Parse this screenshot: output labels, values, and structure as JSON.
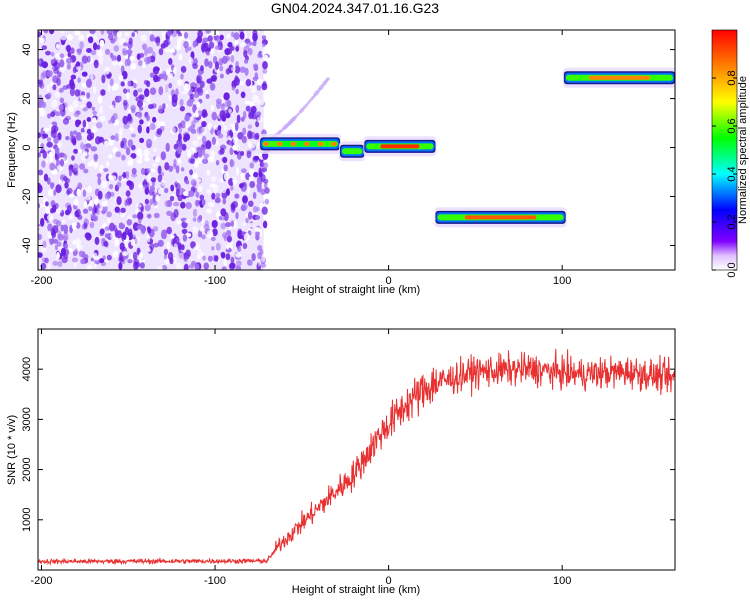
{
  "title": "GN04.2024.347.01.16.G23",
  "chart_data": [
    {
      "type": "heatmap",
      "name": "spectrogram",
      "xlabel": "Height of straight line (km)",
      "ylabel": "Frequency (Hz)",
      "xlim": [
        -202,
        165
      ],
      "ylim": [
        -50,
        48
      ],
      "xticks": [
        -200,
        -100,
        0,
        100
      ],
      "yticks": [
        -40,
        -20,
        0,
        20,
        40
      ],
      "colorbar": {
        "label": "Normalized spectral amplitude",
        "range": [
          0,
          1
        ],
        "ticks": [
          0.0,
          0.2,
          0.4,
          0.6,
          0.8
        ],
        "colors": [
          "#ffffff",
          "#8000ff",
          "#0000ff",
          "#00ffff",
          "#00ff00",
          "#ffff00",
          "#ff8000",
          "#ff0000"
        ]
      },
      "noise_region": {
        "x_range": [
          -202,
          -72
        ],
        "f_range": [
          -50,
          48
        ],
        "amplitude": 0.1
      },
      "segments": [
        {
          "x_range": [
            -74,
            -28
          ],
          "freq": 1.5,
          "amplitude": 0.55
        },
        {
          "x_range": [
            -28,
            -14
          ],
          "freq": -1.5,
          "amplitude": 0.6
        },
        {
          "x_range": [
            -14,
            27
          ],
          "freq": 0.5,
          "amplitude": 0.95
        },
        {
          "x_range": [
            27,
            102
          ],
          "freq": -28.5,
          "amplitude": 0.9
        },
        {
          "x_range": [
            101,
            165
          ],
          "freq": 28.5,
          "amplitude": 0.85
        }
      ],
      "trace": {
        "x_range": [
          -72,
          -35
        ],
        "f_range": [
          2,
          28
        ],
        "amplitude": 0.1
      }
    },
    {
      "type": "line",
      "name": "snr",
      "xlabel": "Height of straight line (km)",
      "ylabel": "SNR (10 * v/v)",
      "xlim": [
        -202,
        165
      ],
      "ylim": [
        0,
        4800
      ],
      "xticks": [
        -200,
        -100,
        0,
        100
      ],
      "yticks": [
        1000,
        2000,
        3000,
        4000
      ],
      "color": "#e83030",
      "profile": [
        [
          -202,
          170
        ],
        [
          -70,
          180
        ],
        [
          -63,
          500
        ],
        [
          -40,
          1250
        ],
        [
          -20,
          1900
        ],
        [
          -5,
          2700
        ],
        [
          10,
          3300
        ],
        [
          25,
          3700
        ],
        [
          50,
          3950
        ],
        [
          80,
          4000
        ],
        [
          110,
          3900
        ],
        [
          140,
          3950
        ],
        [
          165,
          3800
        ]
      ]
    }
  ]
}
